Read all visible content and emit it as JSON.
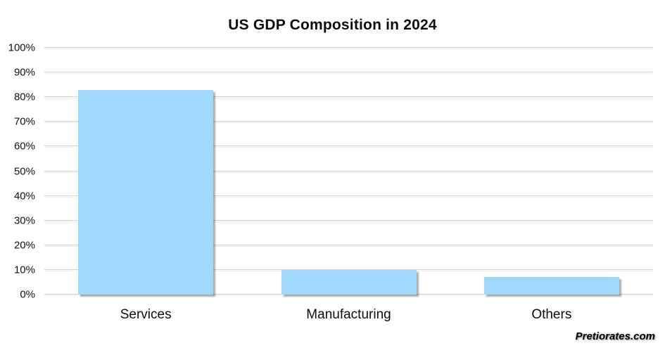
{
  "title": "US GDP Composition in 2024",
  "watermark": "Pretiorates.com",
  "chart_data": {
    "type": "bar",
    "title": "US GDP Composition in 2024",
    "categories": [
      "Services",
      "Manufacturing",
      "Others"
    ],
    "values": [
      83,
      10,
      7
    ],
    "unit": "%",
    "xlabel": "",
    "ylabel": "",
    "ylim": [
      0,
      100
    ],
    "ytick_step": 10,
    "ytick_labels": [
      "0%",
      "10%",
      "20%",
      "30%",
      "40%",
      "50%",
      "60%",
      "70%",
      "80%",
      "90%",
      "100%"
    ],
    "grid": true,
    "legend": "none",
    "bar_color": "#9ed9fb"
  },
  "colors": {
    "bar": "#9ed9fb",
    "gridline": "#d4d4d4",
    "title_text": "#0d0d0d",
    "tick_text": "#111111",
    "background": "#ffffff"
  }
}
